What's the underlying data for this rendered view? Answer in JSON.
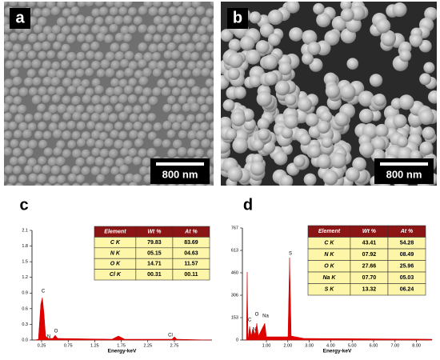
{
  "panels": [
    {
      "label": "a",
      "scale_bar": "800 nm"
    },
    {
      "label": "b",
      "scale_bar": "800 nm"
    }
  ],
  "spectra": [
    {
      "label": "c",
      "yticks": [
        "0.0",
        "0.3",
        "0.6",
        "0.9",
        "1.2",
        "1.5",
        "1.8",
        "2.1"
      ],
      "xticks": [
        "0.25",
        "0.75",
        "1.25",
        "1.75",
        "2.25",
        "2.75"
      ],
      "x_label": "Energy-keV",
      "peaks": [
        "C",
        "N",
        "O",
        "Cl"
      ],
      "table": {
        "header": [
          "Element",
          "Wt %",
          "At %"
        ],
        "rows": [
          [
            "C K",
            "79.83",
            "83.69"
          ],
          [
            "N K",
            "05.15",
            "04.63"
          ],
          [
            "O K",
            "14.71",
            "11.57"
          ],
          [
            "Cl K",
            "00.31",
            "00.11"
          ]
        ]
      }
    },
    {
      "label": "d",
      "yticks": [
        "0",
        "153",
        "306",
        "460",
        "613",
        "767"
      ],
      "xticks": [
        "1.00",
        "2.00",
        "3.00",
        "4.00",
        "5.00",
        "6.00",
        "7.00",
        "8.00"
      ],
      "x_label": "Energy-keV",
      "peaks": [
        "C",
        "N",
        "O",
        "Na",
        "S"
      ],
      "table": {
        "header": [
          "Element",
          "Wt %",
          "At %"
        ],
        "rows": [
          [
            "C K",
            "43.41",
            "54.28"
          ],
          [
            "N K",
            "07.92",
            "08.49"
          ],
          [
            "O K",
            "27.66",
            "25.96"
          ],
          [
            "Na K",
            "07.70",
            "05.03"
          ],
          [
            "S K",
            "13.32",
            "06.24"
          ]
        ]
      }
    }
  ]
}
